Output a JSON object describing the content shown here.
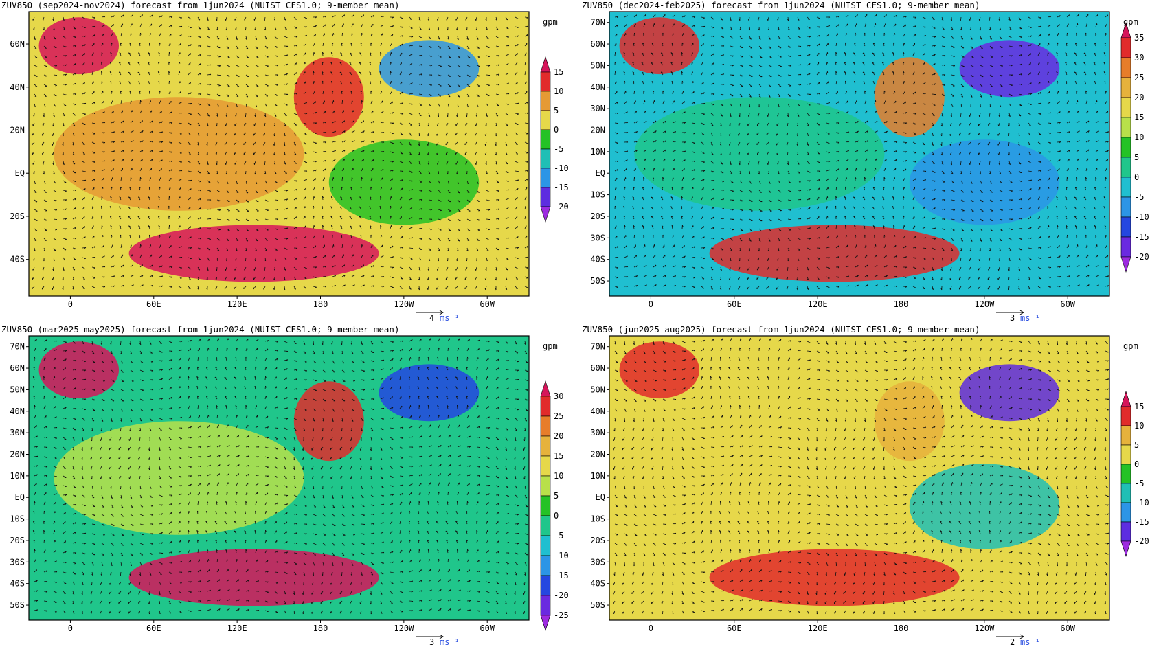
{
  "panels": [
    {
      "id": "p1",
      "title": "ZUV850 (sep2024-nov2024) forecast from 1jun2024 (NUIST CFS1.0; 9-member mean)",
      "unit": "gpm",
      "lat_labels": [
        "60N",
        "40N",
        "20N",
        "EQ",
        "20S",
        "40S"
      ],
      "lat_values": [
        60,
        40,
        20,
        0,
        -20,
        -40
      ],
      "lat_range": [
        -57,
        75
      ],
      "lon_labels": [
        "0",
        "60E",
        "120E",
        "180",
        "120W",
        "60W"
      ],
      "colorbar": {
        "levels": [
          "15",
          "10",
          "5",
          "0",
          "-5",
          "-10",
          "-15",
          "-20"
        ],
        "colors": [
          "#d6155a",
          "#e12b2b",
          "#e59a34",
          "#e6d84a",
          "#24c226",
          "#20bfb5",
          "#2c95e6",
          "#5d2de0",
          "#9d2be0"
        ]
      },
      "vector_ref": {
        "value": "4",
        "unit": "ms⁻¹"
      },
      "fill_level": 1
    },
    {
      "id": "p2",
      "title": "ZUV850 (dec2024-feb2025) forecast from 1jun2024 (NUIST CFS1.0; 9-member mean)",
      "unit": "gpm",
      "lat_labels": [
        "70N",
        "60N",
        "50N",
        "40N",
        "30N",
        "20N",
        "10N",
        "EQ",
        "10S",
        "20S",
        "30S",
        "40S",
        "50S"
      ],
      "lat_values": [
        70,
        60,
        50,
        40,
        30,
        20,
        10,
        0,
        -10,
        -20,
        -30,
        -40,
        -50
      ],
      "lat_range": [
        -57,
        75
      ],
      "lon_labels": [
        "0",
        "60E",
        "120E",
        "180",
        "120W",
        "60W"
      ],
      "colorbar": {
        "levels": [
          "35",
          "30",
          "25",
          "20",
          "15",
          "10",
          "5",
          "0",
          "-5",
          "-10",
          "-15",
          "-20"
        ],
        "colors": [
          "#d6155a",
          "#e12b2b",
          "#e77d2a",
          "#e6b23c",
          "#e6d84a",
          "#b8e04a",
          "#24c226",
          "#20c68b",
          "#20bfd0",
          "#2c95e6",
          "#2547e0",
          "#6a2ae0",
          "#9d2be0"
        ]
      },
      "vector_ref": {
        "value": "3",
        "unit": "ms⁻¹"
      },
      "fill_level": -1
    },
    {
      "id": "p3",
      "title": "ZUV850 (mar2025-may2025) forecast from 1jun2024 (NUIST CFS1.0; 9-member mean)",
      "unit": "gpm",
      "lat_labels": [
        "70N",
        "60N",
        "50N",
        "40N",
        "30N",
        "20N",
        "10N",
        "EQ",
        "10S",
        "20S",
        "30S",
        "40S",
        "50S"
      ],
      "lat_values": [
        70,
        60,
        50,
        40,
        30,
        20,
        10,
        0,
        -10,
        -20,
        -30,
        -40,
        -50
      ],
      "lat_range": [
        -57,
        75
      ],
      "lon_labels": [
        "0",
        "60E",
        "120E",
        "180",
        "120W",
        "60W"
      ],
      "colorbar": {
        "levels": [
          "30",
          "25",
          "20",
          "15",
          "10",
          "5",
          "0",
          "-5",
          "-10",
          "-15",
          "-20",
          "-25"
        ],
        "colors": [
          "#d6155a",
          "#e12b2b",
          "#e77d2a",
          "#e6b23c",
          "#e6d84a",
          "#b8e04a",
          "#24c226",
          "#20c68b",
          "#20bfd0",
          "#2c95e6",
          "#2547e0",
          "#6a2ae0",
          "#9d2be0"
        ]
      },
      "vector_ref": {
        "value": "3",
        "unit": "ms⁻¹"
      },
      "fill_level": 0
    },
    {
      "id": "p4",
      "title": "ZUV850 (jun2025-aug2025) forecast from 1jun2024 (NUIST CFS1.0; 9-member mean)",
      "unit": "gpm",
      "lat_labels": [
        "70N",
        "60N",
        "50N",
        "40N",
        "30N",
        "20N",
        "10N",
        "EQ",
        "10S",
        "20S",
        "30S",
        "40S",
        "50S"
      ],
      "lat_values": [
        70,
        60,
        50,
        40,
        30,
        20,
        10,
        0,
        -10,
        -20,
        -30,
        -40,
        -50
      ],
      "lat_range": [
        -57,
        75
      ],
      "lon_labels": [
        "0",
        "60E",
        "120E",
        "180",
        "120W",
        "60W"
      ],
      "colorbar": {
        "levels": [
          "15",
          "10",
          "5",
          "0",
          "-5",
          "-10",
          "-15",
          "-20"
        ],
        "colors": [
          "#d6155a",
          "#e12b2b",
          "#e6b23c",
          "#e6d84a",
          "#24c226",
          "#20bfb5",
          "#2c95e6",
          "#5d2de0",
          "#9d2be0"
        ]
      },
      "vector_ref": {
        "value": "2",
        "unit": "ms⁻¹"
      },
      "fill_level": 1
    }
  ]
}
